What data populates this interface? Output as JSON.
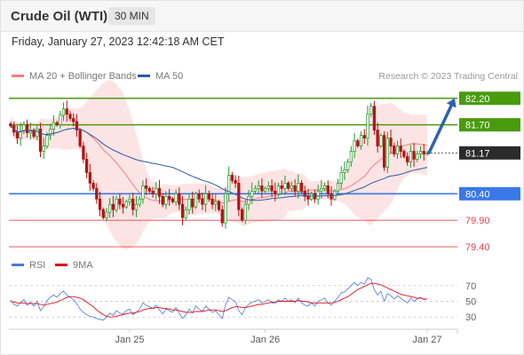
{
  "header": {
    "title": "Crude Oil (WTI)",
    "timeframe": "30 MIN"
  },
  "datetime": "Friday, January 27, 2023 12:42:18 AM CET",
  "legend": {
    "ma20_label": "MA 20 + Bollinger Bands",
    "ma20_color": "#f08080",
    "ma50_label": "MA 50",
    "ma50_color": "#2a5aa8"
  },
  "credit": "Research © 2023 Trading Central",
  "chart_data": [
    {
      "type": "candlestick",
      "price_range": [
        79.2,
        82.38
      ],
      "x_tick_labels": [
        "Jan 25",
        "Jan 26",
        "Jan 27"
      ],
      "last_price": {
        "label": "81.17",
        "value": 81.17
      },
      "levels": [
        {
          "label": "82.20",
          "value": 82.2,
          "kind": "resistance",
          "color": "#4a9a0e"
        },
        {
          "label": "81.70",
          "value": 81.7,
          "kind": "resistance",
          "color": "#4a9a0e"
        },
        {
          "label": "80.40",
          "value": 80.4,
          "kind": "pivot",
          "color": "#3b78e7"
        },
        {
          "label": "79.90",
          "value": 79.9,
          "kind": "support",
          "color": "#e0454b"
        },
        {
          "label": "79.40",
          "value": 79.4,
          "kind": "support",
          "color": "#e0454b"
        }
      ],
      "forecast_arrow": {
        "from": 81.17,
        "to": 82.2,
        "color": "#2e62ad"
      },
      "up_color": "#1f9a2a",
      "down_color": "#b31414",
      "closes": [
        81.68,
        81.56,
        81.45,
        81.58,
        81.7,
        81.55,
        81.6,
        81.48,
        81.62,
        81.2,
        81.3,
        81.5,
        81.62,
        81.74,
        81.7,
        81.88,
        82.0,
        81.9,
        81.82,
        81.76,
        81.6,
        81.3,
        81.05,
        80.8,
        80.6,
        80.5,
        80.3,
        80.1,
        79.95,
        80.05,
        80.2,
        80.1,
        80.3,
        80.2,
        80.15,
        80.25,
        80.3,
        80.1,
        80.2,
        80.3,
        80.55,
        80.5,
        80.45,
        80.4,
        80.5,
        80.35,
        80.2,
        80.35,
        80.3,
        80.25,
        80.4,
        80.2,
        79.95,
        80.1,
        80.3,
        80.15,
        80.4,
        80.3,
        80.2,
        80.4,
        80.3,
        80.2,
        80.25,
        80.1,
        79.85,
        80.4,
        80.75,
        80.65,
        80.6,
        80.1,
        79.9,
        80.2,
        80.35,
        80.45,
        80.5,
        80.55,
        80.45,
        80.5,
        80.55,
        80.45,
        80.4,
        80.55,
        80.5,
        80.6,
        80.5,
        80.55,
        80.45,
        80.6,
        80.45,
        80.35,
        80.3,
        80.4,
        80.3,
        80.45,
        80.5,
        80.55,
        80.4,
        80.3,
        80.45,
        80.6,
        80.8,
        80.85,
        81.0,
        81.2,
        81.4,
        81.3,
        81.5,
        81.45,
        81.9,
        82.05,
        81.6,
        81.3,
        81.5,
        80.9,
        81.45,
        81.3,
        81.15,
        81.3,
        81.2,
        81.1,
        81.0,
        81.2,
        81.05,
        81.15,
        81.2,
        81.15,
        81.17
      ]
    },
    {
      "type": "line",
      "legend": [
        {
          "name": "RSI",
          "color": "#4a78d9"
        },
        {
          "name": "9MA",
          "color": "#e0101a"
        }
      ],
      "y_ticks": [
        70,
        50,
        30
      ],
      "ylim": [
        20,
        80
      ],
      "rsi": [
        52,
        46,
        44,
        48,
        52,
        45,
        49,
        44,
        50,
        38,
        43,
        51,
        55,
        58,
        55,
        60,
        63,
        58,
        55,
        52,
        47,
        40,
        36,
        33,
        31,
        30,
        28,
        27,
        26,
        30,
        35,
        32,
        38,
        35,
        34,
        38,
        40,
        33,
        36,
        40,
        48,
        45,
        43,
        41,
        45,
        39,
        34,
        40,
        38,
        36,
        42,
        35,
        28,
        33,
        40,
        35,
        44,
        40,
        37,
        44,
        40,
        36,
        38,
        33,
        28,
        45,
        55,
        52,
        50,
        38,
        33,
        42,
        46,
        49,
        50,
        52,
        48,
        50,
        52,
        48,
        47,
        52,
        50,
        54,
        50,
        52,
        48,
        54,
        48,
        45,
        44,
        48,
        44,
        50,
        52,
        54,
        48,
        45,
        50,
        55,
        61,
        62,
        66,
        70,
        74,
        70,
        74,
        72,
        80,
        78,
        65,
        58,
        63,
        50,
        60,
        57,
        53,
        57,
        54,
        51,
        48,
        54,
        50,
        53,
        55,
        52,
        53
      ],
      "ma9": [
        50,
        49,
        48,
        48,
        48,
        47,
        47,
        47,
        47,
        46,
        45,
        46,
        47,
        48,
        49,
        51,
        53,
        55,
        56,
        56,
        55,
        54,
        52,
        49,
        46,
        43,
        39,
        36,
        33,
        31,
        30,
        30,
        31,
        32,
        33,
        34,
        35,
        35,
        36,
        37,
        39,
        40,
        41,
        41,
        42,
        42,
        41,
        41,
        40,
        39,
        39,
        38,
        37,
        36,
        36,
        36,
        37,
        37,
        37,
        38,
        39,
        39,
        39,
        38,
        37,
        38,
        40,
        42,
        43,
        43,
        42,
        42,
        43,
        44,
        45,
        46,
        46,
        47,
        48,
        49,
        49,
        50,
        50,
        50,
        50,
        50,
        50,
        51,
        50,
        50,
        49,
        48,
        48,
        48,
        48,
        48,
        48,
        48,
        49,
        50,
        52,
        54,
        56,
        59,
        62,
        65,
        67,
        69,
        71,
        73,
        73,
        72,
        71,
        69,
        67,
        65,
        63,
        61,
        59,
        58,
        57,
        56,
        55,
        54,
        54,
        53,
        53
      ]
    }
  ]
}
